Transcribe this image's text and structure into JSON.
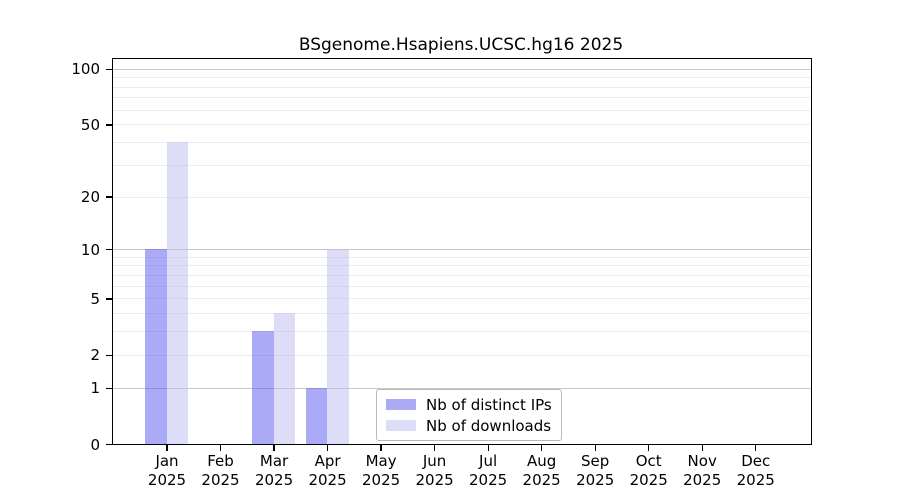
{
  "title": "BSgenome.Hsapiens.UCSC.hg16 2025",
  "chart_data": {
    "type": "bar",
    "title": "BSgenome.Hsapiens.UCSC.hg16 2025",
    "xlabel": "",
    "ylabel": "",
    "categories": [
      "Jan",
      "Feb",
      "Mar",
      "Apr",
      "May",
      "Jun",
      "Jul",
      "Aug",
      "Sep",
      "Oct",
      "Nov",
      "Dec"
    ],
    "category_year": "2025",
    "series": [
      {
        "name": "Nb of distinct IPs",
        "color": "rgba(85,85,240,0.5)",
        "values": [
          10,
          0,
          3,
          1,
          0,
          0,
          0,
          0,
          0,
          0,
          0,
          0
        ]
      },
      {
        "name": "Nb of downloads",
        "color": "rgba(188,188,242,0.5)",
        "values": [
          40,
          0,
          4,
          10,
          0,
          0,
          0,
          0,
          0,
          0,
          0,
          0
        ]
      }
    ],
    "y_axis": {
      "scale": "log1p",
      "tick_values": [
        0,
        1,
        2,
        5,
        10,
        20,
        50,
        100
      ],
      "major_gridlines": [
        1,
        10,
        100
      ],
      "minor_gridlines": [
        2,
        3,
        4,
        5,
        6,
        7,
        8,
        9,
        20,
        30,
        40,
        50,
        60,
        70,
        80,
        90
      ],
      "range": [
        0,
        113
      ]
    },
    "legend": {
      "position": "inside-bottom-center",
      "entries": [
        "Nb of distinct IPs",
        "Nb of downloads"
      ]
    },
    "grid": "horizontal"
  },
  "colors": {
    "background": "#ffffff",
    "axis": "#000000",
    "minor_gridline": "#ececec",
    "major_gridline": "#c8c8c8",
    "bar_distinct_ips": "rgba(85,85,240,0.5)",
    "bar_downloads": "rgba(188,188,242,0.5)",
    "text": "#000000"
  }
}
